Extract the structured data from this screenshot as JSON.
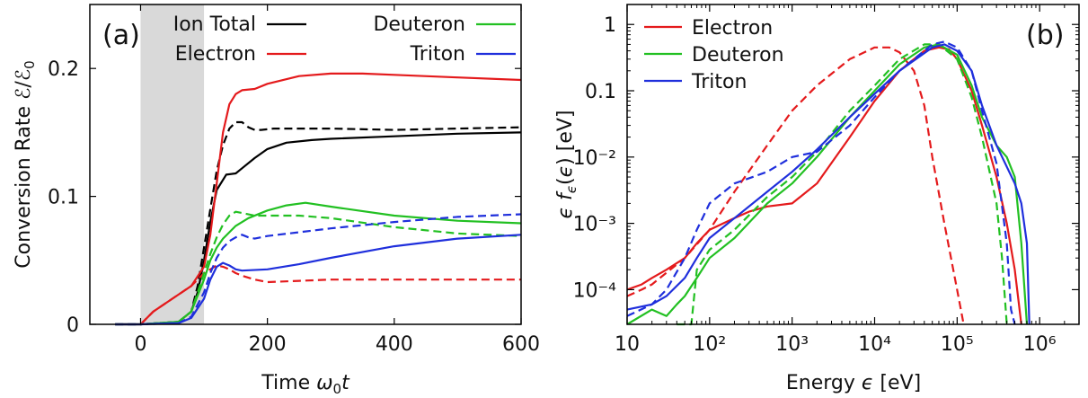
{
  "colors": {
    "ion_total": "#000000",
    "electron": "#e41a1c",
    "deuteron": "#22c022",
    "triton": "#1f2fdc",
    "shade": "#d9d9d9"
  },
  "chart_data": [
    {
      "type": "line",
      "panel_label": "(a)",
      "xlabel": "Time ω₀t",
      "ylabel": "Conversion Rate ℰ/ℰ₀",
      "xlim": [
        -80,
        600
      ],
      "ylim": [
        0,
        0.25
      ],
      "xticks": [
        0,
        200,
        400,
        600
      ],
      "yticks": [
        0,
        0.1,
        0.2
      ],
      "x_tick_labels": [
        "0",
        "200",
        "400",
        "600"
      ],
      "y_tick_labels": [
        "0",
        "0.1",
        "0.2"
      ],
      "shaded_region": [
        0,
        100
      ],
      "legend": [
        "Ion Total",
        "Electron",
        "Deuteron",
        "Triton"
      ],
      "legend_placement": "top",
      "series": [
        {
          "name": "Ion Total",
          "style": "solid",
          "x": [
            -40,
            0,
            60,
            80,
            90,
            100,
            110,
            120,
            135,
            150,
            160,
            180,
            200,
            230,
            270,
            300,
            400,
            500,
            600
          ],
          "y": [
            0,
            0,
            0.002,
            0.01,
            0.025,
            0.05,
            0.08,
            0.105,
            0.117,
            0.118,
            0.122,
            0.13,
            0.137,
            0.142,
            0.144,
            0.145,
            0.147,
            0.149,
            0.15
          ]
        },
        {
          "name": "Ion Total",
          "style": "dashed",
          "x": [
            -40,
            0,
            60,
            80,
            90,
            100,
            110,
            120,
            130,
            140,
            150,
            160,
            170,
            180,
            190,
            210,
            300,
            400,
            500,
            600
          ],
          "y": [
            0,
            0,
            0.002,
            0.01,
            0.03,
            0.06,
            0.09,
            0.12,
            0.14,
            0.153,
            0.158,
            0.158,
            0.154,
            0.152,
            0.152,
            0.153,
            0.153,
            0.152,
            0.153,
            0.154
          ]
        },
        {
          "name": "Electron",
          "style": "solid",
          "x": [
            -40,
            0,
            20,
            50,
            80,
            100,
            110,
            120,
            130,
            140,
            150,
            160,
            180,
            200,
            250,
            300,
            350,
            400,
            500,
            600
          ],
          "y": [
            0,
            0,
            0.01,
            0.02,
            0.03,
            0.045,
            0.07,
            0.11,
            0.15,
            0.172,
            0.18,
            0.183,
            0.184,
            0.188,
            0.194,
            0.196,
            0.196,
            0.195,
            0.193,
            0.191
          ]
        },
        {
          "name": "Electron",
          "style": "dashed",
          "x": [
            -40,
            0,
            20,
            50,
            80,
            100,
            110,
            120,
            130,
            140,
            150,
            160,
            180,
            200,
            250,
            300,
            400,
            500,
            600
          ],
          "y": [
            0,
            0,
            0.01,
            0.02,
            0.03,
            0.04,
            0.043,
            0.046,
            0.045,
            0.043,
            0.04,
            0.038,
            0.035,
            0.033,
            0.034,
            0.035,
            0.035,
            0.035,
            0.035
          ]
        },
        {
          "name": "Deuteron",
          "style": "solid",
          "x": [
            -40,
            0,
            60,
            80,
            100,
            110,
            120,
            130,
            140,
            150,
            170,
            200,
            230,
            260,
            300,
            400,
            500,
            600
          ],
          "y": [
            0,
            0,
            0.002,
            0.01,
            0.035,
            0.05,
            0.06,
            0.067,
            0.072,
            0.077,
            0.083,
            0.089,
            0.093,
            0.095,
            0.092,
            0.085,
            0.081,
            0.079
          ]
        },
        {
          "name": "Deuteron",
          "style": "dashed",
          "x": [
            -40,
            0,
            60,
            80,
            100,
            110,
            120,
            130,
            140,
            150,
            160,
            180,
            200,
            250,
            300,
            400,
            500,
            600
          ],
          "y": [
            0,
            0,
            0.002,
            0.01,
            0.04,
            0.055,
            0.068,
            0.078,
            0.085,
            0.088,
            0.087,
            0.085,
            0.085,
            0.085,
            0.083,
            0.076,
            0.071,
            0.069
          ]
        },
        {
          "name": "Triton",
          "style": "solid",
          "x": [
            -40,
            0,
            60,
            80,
            100,
            110,
            120,
            130,
            140,
            150,
            160,
            200,
            250,
            300,
            400,
            500,
            600
          ],
          "y": [
            0,
            0,
            0.001,
            0.005,
            0.02,
            0.035,
            0.045,
            0.048,
            0.046,
            0.043,
            0.042,
            0.043,
            0.047,
            0.052,
            0.061,
            0.067,
            0.07
          ]
        },
        {
          "name": "Triton",
          "style": "dashed",
          "x": [
            -40,
            0,
            60,
            80,
            100,
            110,
            120,
            130,
            140,
            150,
            160,
            170,
            180,
            200,
            250,
            300,
            400,
            500,
            600
          ],
          "y": [
            0,
            0,
            0.001,
            0.006,
            0.025,
            0.04,
            0.052,
            0.06,
            0.065,
            0.068,
            0.07,
            0.068,
            0.067,
            0.069,
            0.072,
            0.075,
            0.08,
            0.084,
            0.086
          ]
        }
      ]
    },
    {
      "type": "line",
      "panel_label": "(b)",
      "xlabel": "Energy ϵ [eV]",
      "ylabel": "ϵf_ϵ(ϵ) [eV]",
      "xscale": "log",
      "yscale": "log",
      "xlim": [
        10,
        3000000
      ],
      "ylim": [
        3e-05,
        2
      ],
      "xticks": [
        10,
        100,
        1000,
        10000,
        100000,
        1000000
      ],
      "yticks": [
        0.0001,
        0.001,
        0.01,
        0.1,
        1
      ],
      "x_tick_labels": [
        "10",
        "10²",
        "10³",
        "10⁴",
        "10⁵",
        "10⁶"
      ],
      "y_tick_labels": [
        "10⁻⁴",
        "10⁻³",
        "10⁻²",
        "0.1",
        "1"
      ],
      "legend": [
        "Electron",
        "Deuteron",
        "Triton"
      ],
      "legend_placement": "top-left",
      "series": [
        {
          "name": "Electron",
          "style": "solid",
          "x": [
            10,
            15,
            20,
            30,
            50,
            70,
            100,
            200,
            300,
            500,
            1000,
            2000,
            5000,
            10000,
            20000,
            40000,
            60000,
            80000,
            100000,
            150000,
            200000,
            300000,
            400000,
            500000,
            600000
          ],
          "y": [
            0.0001,
            0.00012,
            0.00015,
            0.0002,
            0.0003,
            0.0005,
            0.0008,
            0.0012,
            0.0015,
            0.0018,
            0.002,
            0.004,
            0.02,
            0.07,
            0.2,
            0.4,
            0.45,
            0.42,
            0.3,
            0.1,
            0.03,
            0.005,
            0.001,
            0.0002,
            3e-05
          ]
        },
        {
          "name": "Electron",
          "style": "dashed",
          "x": [
            10,
            15,
            20,
            30,
            50,
            100,
            200,
            500,
            1000,
            2000,
            5000,
            10000,
            15000,
            20000,
            30000,
            40000,
            50000,
            70000,
            100000,
            120000
          ],
          "y": [
            8e-05,
            0.0001,
            0.00012,
            0.00018,
            0.0003,
            0.0008,
            0.003,
            0.015,
            0.05,
            0.12,
            0.3,
            0.45,
            0.45,
            0.38,
            0.2,
            0.06,
            0.01,
            0.001,
            0.0001,
            3e-05
          ]
        },
        {
          "name": "Deuteron",
          "style": "solid",
          "x": [
            10,
            20,
            30,
            40,
            50,
            70,
            100,
            200,
            500,
            1000,
            2000,
            5000,
            10000,
            20000,
            40000,
            60000,
            100000,
            150000,
            200000,
            300000,
            400000,
            500000,
            600000,
            700000
          ],
          "y": [
            3e-05,
            5e-05,
            4e-05,
            6e-05,
            8e-05,
            0.00015,
            0.0003,
            0.0006,
            0.002,
            0.004,
            0.01,
            0.04,
            0.1,
            0.25,
            0.45,
            0.5,
            0.35,
            0.12,
            0.04,
            0.015,
            0.01,
            0.005,
            0.0005,
            3e-05
          ]
        },
        {
          "name": "Deuteron",
          "style": "dashed",
          "x": [
            40,
            60,
            70,
            100,
            200,
            500,
            1000,
            2000,
            5000,
            10000,
            20000,
            40000,
            60000,
            100000,
            150000,
            200000,
            300000,
            350000,
            400000
          ],
          "y": [
            3e-05,
            3e-05,
            0.0002,
            0.0004,
            0.0008,
            0.0025,
            0.005,
            0.012,
            0.05,
            0.12,
            0.3,
            0.5,
            0.5,
            0.3,
            0.08,
            0.02,
            0.002,
            0.0003,
            3e-05
          ]
        },
        {
          "name": "Triton",
          "style": "solid",
          "x": [
            10,
            20,
            30,
            50,
            70,
            100,
            200,
            500,
            1000,
            2000,
            5000,
            10000,
            20000,
            50000,
            70000,
            100000,
            150000,
            200000,
            300000,
            500000,
            600000,
            700000,
            750000
          ],
          "y": [
            5e-05,
            6e-05,
            8e-05,
            0.00015,
            0.0003,
            0.0006,
            0.0012,
            0.003,
            0.006,
            0.013,
            0.04,
            0.09,
            0.2,
            0.45,
            0.5,
            0.4,
            0.2,
            0.06,
            0.015,
            0.004,
            0.002,
            0.0005,
            3e-05
          ]
        },
        {
          "name": "Triton",
          "style": "dashed",
          "x": [
            10,
            20,
            30,
            50,
            70,
            100,
            200,
            500,
            1000,
            2000,
            5000,
            10000,
            20000,
            50000,
            70000,
            100000,
            150000,
            200000,
            300000,
            400000,
            450000,
            500000
          ],
          "y": [
            4e-05,
            6e-05,
            0.0001,
            0.0003,
            0.0008,
            0.002,
            0.004,
            0.006,
            0.01,
            0.012,
            0.03,
            0.08,
            0.2,
            0.5,
            0.55,
            0.45,
            0.2,
            0.05,
            0.008,
            0.0005,
            5e-05,
            3e-05
          ]
        }
      ]
    }
  ]
}
